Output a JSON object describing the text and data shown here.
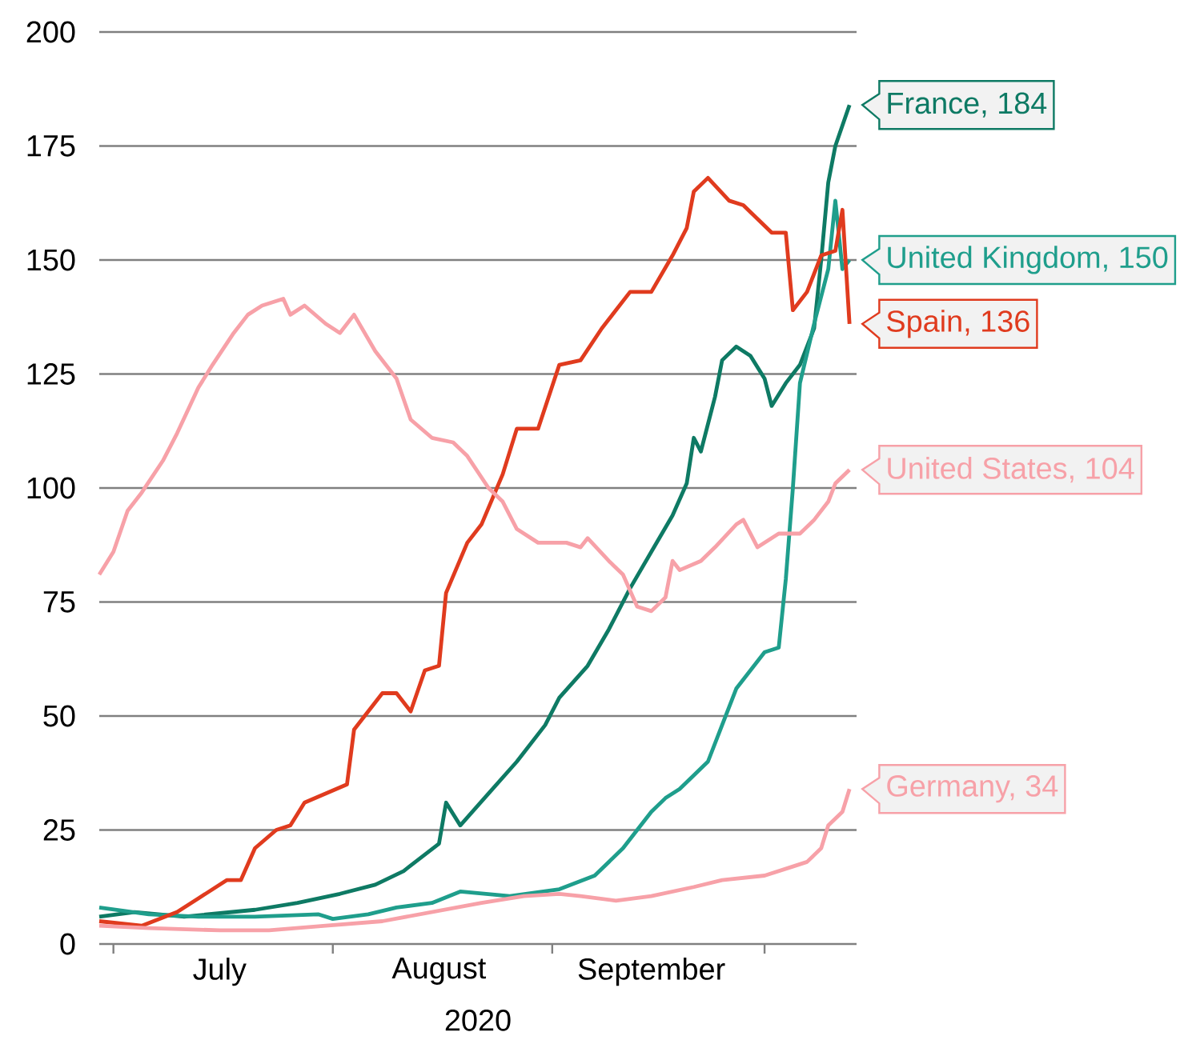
{
  "chart_data": {
    "type": "line",
    "xlabel": "2020",
    "xlim": [
      "2020-06-29",
      "2020-10-14"
    ],
    "ylim": [
      0,
      200
    ],
    "yticks": [
      0,
      25,
      50,
      75,
      100,
      125,
      150,
      175,
      200
    ],
    "xticks": [
      {
        "value": "2020-07-01",
        "label": null
      },
      {
        "value": "2020-08-01",
        "label": null
      },
      {
        "value": "2020-09-01",
        "label": null
      },
      {
        "value": "2020-10-01",
        "label": null
      },
      {
        "value": "2020-07-16",
        "label": "July"
      },
      {
        "value": "2020-08-16",
        "label": "August"
      },
      {
        "value": "2020-09-15",
        "label": "September"
      }
    ],
    "grid": "y",
    "series": [
      {
        "color": "#0e7a64",
        "x": [
          "2020-06-29",
          "2020-07-04",
          "2020-07-11",
          "2020-07-21",
          "2020-07-27",
          "2020-08-02",
          "2020-08-07",
          "2020-08-11",
          "2020-08-16",
          "2020-08-17",
          "2020-08-19",
          "2020-08-23",
          "2020-08-27",
          "2020-08-31",
          "2020-09-02",
          "2020-09-06",
          "2020-09-09",
          "2020-09-12",
          "2020-09-15",
          "2020-09-18",
          "2020-09-20",
          "2020-09-21",
          "2020-09-22",
          "2020-09-24",
          "2020-09-25",
          "2020-09-27",
          "2020-09-29",
          "2020-10-01",
          "2020-10-02",
          "2020-10-04",
          "2020-10-06",
          "2020-10-08",
          "2020-10-09",
          "2020-10-10",
          "2020-10-11",
          "2020-10-13"
        ],
        "values": [
          6,
          7,
          6,
          7.5,
          9,
          11,
          13,
          16,
          22,
          31,
          26,
          33,
          40,
          48,
          54,
          61,
          69,
          78,
          86,
          94,
          101,
          111,
          108,
          120,
          128,
          131,
          129,
          124,
          118,
          123,
          127,
          135,
          150,
          167,
          175,
          184
        ]
      },
      {
        "color": "#1f9e8c",
        "x": [
          "2020-06-29",
          "2020-07-06",
          "2020-07-13",
          "2020-07-21",
          "2020-07-30",
          "2020-08-01",
          "2020-08-06",
          "2020-08-10",
          "2020-08-15",
          "2020-08-19",
          "2020-08-26",
          "2020-09-02",
          "2020-09-07",
          "2020-09-11",
          "2020-09-15",
          "2020-09-17",
          "2020-09-19",
          "2020-09-23",
          "2020-09-25",
          "2020-09-27",
          "2020-09-29",
          "2020-10-01",
          "2020-10-03",
          "2020-10-04",
          "2020-10-05",
          "2020-10-06",
          "2020-10-08",
          "2020-10-10",
          "2020-10-11",
          "2020-10-12",
          "2020-10-13"
        ],
        "values": [
          8,
          6.5,
          6,
          6,
          6.5,
          5.5,
          6.5,
          8,
          9,
          11.5,
          10.5,
          12,
          15,
          21,
          29,
          32,
          34,
          40,
          48,
          56,
          60,
          64,
          65,
          80,
          100,
          123,
          136,
          148,
          163,
          148,
          150
        ]
      },
      {
        "color": "#e03b1e",
        "x": [
          "2020-06-29",
          "2020-07-05",
          "2020-07-10",
          "2020-07-13",
          "2020-07-17",
          "2020-07-19",
          "2020-07-21",
          "2020-07-24",
          "2020-07-26",
          "2020-07-28",
          "2020-07-31",
          "2020-08-03",
          "2020-08-04",
          "2020-08-08",
          "2020-08-10",
          "2020-08-12",
          "2020-08-14",
          "2020-08-16",
          "2020-08-17",
          "2020-08-20",
          "2020-08-22",
          "2020-08-25",
          "2020-08-27",
          "2020-08-30",
          "2020-09-02",
          "2020-09-05",
          "2020-09-08",
          "2020-09-12",
          "2020-09-15",
          "2020-09-18",
          "2020-09-20",
          "2020-09-21",
          "2020-09-23",
          "2020-09-26",
          "2020-09-28",
          "2020-10-02",
          "2020-10-04",
          "2020-10-05",
          "2020-10-07",
          "2020-10-09",
          "2020-10-11",
          "2020-10-12",
          "2020-10-13"
        ],
        "values": [
          5,
          4,
          7,
          10,
          14,
          14,
          21,
          25,
          26,
          31,
          33,
          35,
          47,
          55,
          55,
          51,
          60,
          61,
          77,
          88,
          92,
          103,
          113,
          113,
          127,
          128,
          135,
          143,
          143,
          151,
          157,
          165,
          168,
          163,
          162,
          156,
          156,
          139,
          143,
          151,
          152,
          161,
          136
        ]
      },
      {
        "color": "#f7a1a8",
        "x": [
          "2020-06-29",
          "2020-07-01",
          "2020-07-03",
          "2020-07-05",
          "2020-07-08",
          "2020-07-10",
          "2020-07-13",
          "2020-07-15",
          "2020-07-18",
          "2020-07-20",
          "2020-07-22",
          "2020-07-25",
          "2020-07-26",
          "2020-07-28",
          "2020-07-31",
          "2020-08-02",
          "2020-08-04",
          "2020-08-07",
          "2020-08-10",
          "2020-08-12",
          "2020-08-15",
          "2020-08-18",
          "2020-08-20",
          "2020-08-23",
          "2020-08-25",
          "2020-08-27",
          "2020-08-30",
          "2020-09-03",
          "2020-09-05",
          "2020-09-06",
          "2020-09-09",
          "2020-09-11",
          "2020-09-13",
          "2020-09-15",
          "2020-09-17",
          "2020-09-18",
          "2020-09-19",
          "2020-09-22",
          "2020-09-24",
          "2020-09-27",
          "2020-09-28",
          "2020-09-30",
          "2020-10-03",
          "2020-10-06",
          "2020-10-08",
          "2020-10-10",
          "2020-10-11",
          "2020-10-13"
        ],
        "values": [
          81,
          86,
          95,
          99,
          106,
          112,
          122,
          127,
          134,
          138,
          140,
          141.5,
          138,
          140,
          136,
          134,
          138,
          130,
          124,
          115,
          111,
          110,
          107,
          100,
          97,
          91,
          88,
          88,
          87,
          89,
          84,
          81,
          74,
          73,
          76,
          84,
          82,
          84,
          87,
          92,
          93,
          87,
          90,
          90,
          93,
          97,
          101,
          104
        ]
      },
      {
        "color": "#f7a1a8",
        "x": [
          "2020-06-29",
          "2020-07-06",
          "2020-07-16",
          "2020-07-23",
          "2020-07-31",
          "2020-08-08",
          "2020-08-15",
          "2020-08-22",
          "2020-08-28",
          "2020-09-02",
          "2020-09-05",
          "2020-09-10",
          "2020-09-15",
          "2020-09-21",
          "2020-09-25",
          "2020-10-01",
          "2020-10-05",
          "2020-10-07",
          "2020-10-09",
          "2020-10-10",
          "2020-10-12",
          "2020-10-13"
        ],
        "values": [
          4,
          3.5,
          3,
          3,
          4,
          5,
          7,
          9,
          10.5,
          11,
          10.5,
          9.5,
          10.5,
          12.5,
          14,
          15,
          17,
          18,
          21,
          26,
          29,
          34
        ]
      }
    ],
    "annotations": [
      {
        "text": "France, 184",
        "x": "2020-10-13",
        "y": 184
      },
      {
        "text": "United Kingdom, 150",
        "x": "2020-10-13",
        "y": 150
      },
      {
        "text": "Spain, 136",
        "x": "2020-10-13",
        "y": 136
      },
      {
        "text": "United States, 104",
        "x": "2020-10-13",
        "y": 104
      },
      {
        "text": "Germany, 34",
        "x": "2020-10-13",
        "y": 34
      }
    ]
  }
}
